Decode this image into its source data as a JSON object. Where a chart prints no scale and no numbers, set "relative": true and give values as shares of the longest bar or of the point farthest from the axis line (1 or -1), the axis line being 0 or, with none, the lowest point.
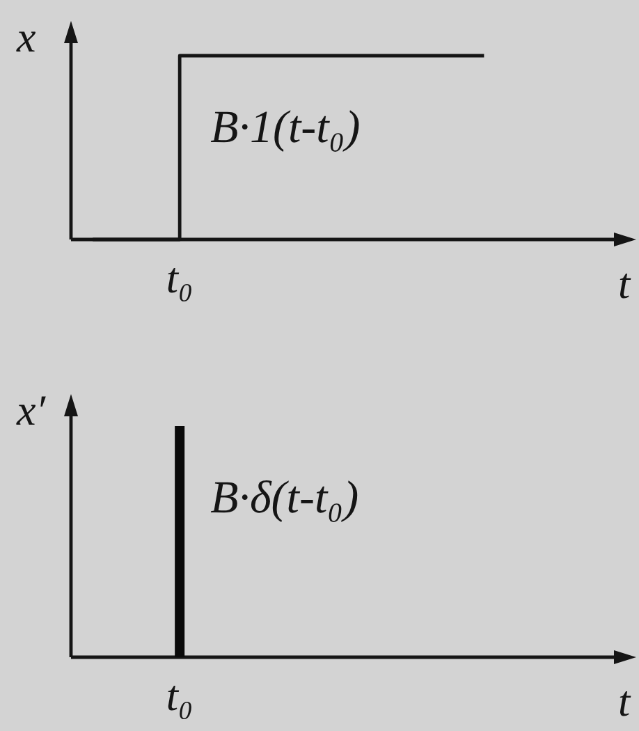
{
  "chart_data": [
    {
      "type": "step",
      "categories": [
        null,
        null,
        null,
        null,
        null,
        null,
        null,
        null,
        null,
        null,
        null,
        null,
        null
      ],
      "values": [
        0,
        0,
        1,
        1,
        1,
        1,
        1,
        1,
        1,
        1,
        null,
        null,
        null
      ],
      "relative": true,
      "color": "#151515",
      "xlabel": "t",
      "ylabel": "x",
      "annotations": [
        "B·1(t-t₀)",
        "t₀"
      ]
    },
    {
      "type": "bar",
      "categories": [
        null,
        null,
        null,
        null,
        null,
        null,
        null,
        null,
        null,
        null,
        null,
        null,
        null
      ],
      "values": [
        null,
        null,
        1,
        null,
        null,
        null,
        null,
        null,
        null,
        null,
        null,
        null,
        null
      ],
      "relative": true,
      "color": "#0a0a0a",
      "xlabel": "t",
      "ylabel": "x′",
      "annotations": [
        "B·δ(t-t₀)",
        "t₀"
      ]
    }
  ]
}
